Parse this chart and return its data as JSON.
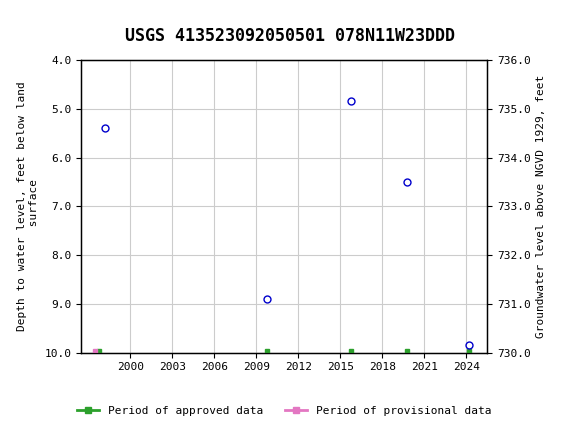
{
  "title": "USGS 413523092050501 078N11W23DDD",
  "ylabel_left": "Depth to water level, feet below land\n surface",
  "ylabel_right": "Groundwater level above NGVD 1929, feet",
  "ylim_left": [
    4.0,
    10.0
  ],
  "ylim_right": [
    736.0,
    730.0
  ],
  "yticks_left": [
    4.0,
    5.0,
    6.0,
    7.0,
    8.0,
    9.0,
    10.0
  ],
  "yticks_right": [
    736.0,
    735.0,
    734.0,
    733.0,
    732.0,
    731.0,
    730.0
  ],
  "xlim": [
    1996.5,
    2025.5
  ],
  "xticks": [
    2000,
    2003,
    2006,
    2009,
    2012,
    2015,
    2018,
    2021,
    2024
  ],
  "xtick_labels": [
    "2000",
    "2003",
    "2006",
    "2009",
    "2012",
    "2015",
    "2018",
    "2021",
    "2024"
  ],
  "data_points": [
    {
      "year": 1998.2,
      "depth": 5.4
    },
    {
      "year": 2009.8,
      "depth": 8.9
    },
    {
      "year": 2015.8,
      "depth": 4.83
    },
    {
      "year": 2019.8,
      "depth": 6.5
    },
    {
      "year": 2024.2,
      "depth": 9.85
    }
  ],
  "approved_bars": [
    {
      "year": 1997.8,
      "depth": 9.97
    },
    {
      "year": 2009.8,
      "depth": 9.97
    },
    {
      "year": 2015.8,
      "depth": 9.97
    },
    {
      "year": 2019.8,
      "depth": 9.97
    },
    {
      "year": 2024.2,
      "depth": 9.97
    }
  ],
  "provisional_bars": [
    {
      "year": 1997.5,
      "depth": 9.97
    }
  ],
  "point_color": "#0000cc",
  "point_facecolor": "none",
  "point_marker": "o",
  "point_size": 5,
  "approved_color": "#2ca02c",
  "provisional_color": "#e377c2",
  "background_color": "#ffffff",
  "header_color": "#1a6640",
  "grid_color": "#cccccc",
  "title_fontsize": 12,
  "axis_label_fontsize": 8,
  "tick_fontsize": 8,
  "legend_fontsize": 8
}
